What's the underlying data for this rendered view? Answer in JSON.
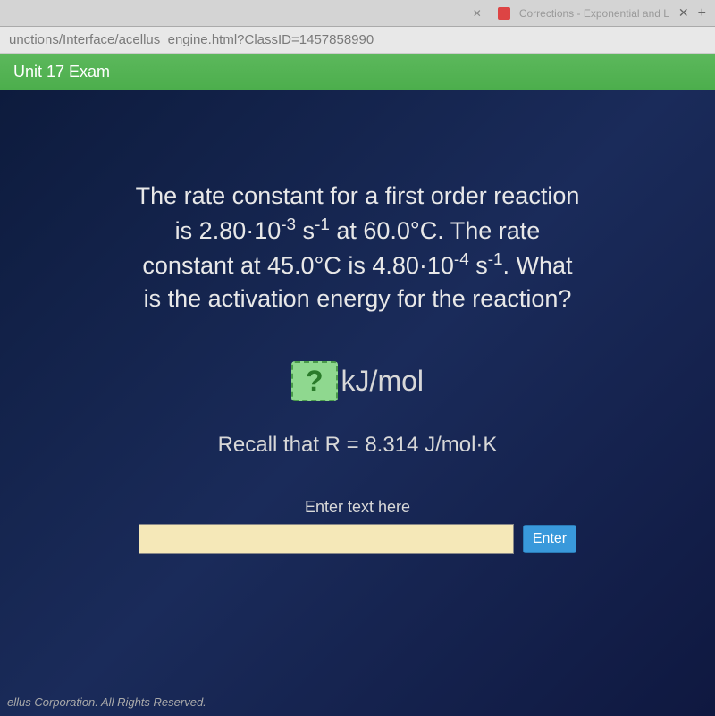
{
  "browser": {
    "tab_label": "Corrections - Exponential and L",
    "url": "unctions/Interface/acellus_engine.html?ClassID=1457858990"
  },
  "header": {
    "title": "Unit 17 Exam"
  },
  "question": {
    "line1": "The rate constant for a first order reaction",
    "line2_pre": "is 2.80·10",
    "line2_sup1": "-3",
    "line2_mid": " s",
    "line2_sup2": "-1",
    "line2_post": " at 60.0°C. The rate",
    "line3_pre": "constant at 45.0°C is 4.80·10",
    "line3_sup1": "-4",
    "line3_mid": " s",
    "line3_sup2": "-1",
    "line3_post": ". What",
    "line4": "is the activation energy for the reaction?"
  },
  "answer": {
    "placeholder": "?",
    "unit": "kJ/mol"
  },
  "hint": {
    "text": "Recall that R = 8.314 J/mol·K"
  },
  "input": {
    "label": "Enter text here",
    "button": "Enter"
  },
  "footer": {
    "text": "ellus Corporation. All Rights Reserved."
  },
  "colors": {
    "header_green": "#5cb85c",
    "content_bg": "#1a2b5a",
    "answer_box_bg": "#8fd88f",
    "enter_btn": "#3999db",
    "input_bg": "#f5e8b8"
  }
}
